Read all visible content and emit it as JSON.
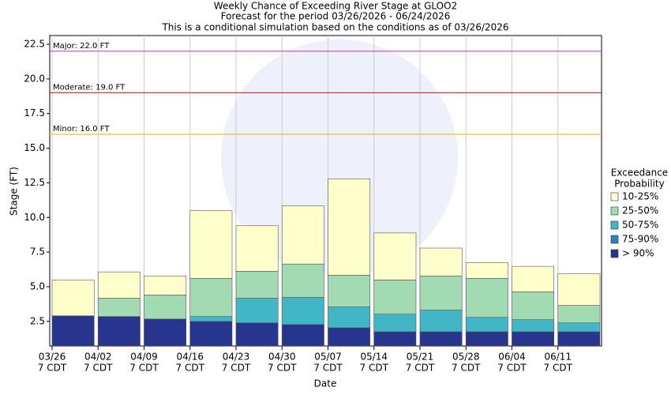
{
  "chart_data": {
    "type": "bar",
    "title": "Weekly Chance of Exceeding River Stage at GLOO2",
    "subtitle": [
      "Forecast for the period 03/26/2026 - 06/24/2026",
      "This is a conditional simulation based on the conditions as of 03/26/2026"
    ],
    "y_label": "Stage (FT)",
    "x_label": "Date",
    "categories": [
      [
        "03/26",
        "7 CDT"
      ],
      [
        "04/02",
        "7 CDT"
      ],
      [
        "04/09",
        "7 CDT"
      ],
      [
        "04/16",
        "7 CDT"
      ],
      [
        "04/23",
        "7 CDT"
      ],
      [
        "04/30",
        "7 CDT"
      ],
      [
        "05/07",
        "7 CDT"
      ],
      [
        "05/14",
        "7 CDT"
      ],
      [
        "05/21",
        "7 CDT"
      ],
      [
        "05/28",
        "7 CDT"
      ],
      [
        "06/04",
        "7 CDT"
      ],
      [
        "06/11",
        "7 CDT"
      ]
    ],
    "series": [
      {
        "name": "> 90%",
        "color": "#27358f",
        "values": [
          2.9,
          2.85,
          2.67,
          2.5,
          2.39,
          2.27,
          2.04,
          1.75,
          1.75,
          1.75,
          1.75,
          1.75
        ]
      },
      {
        "name": "75-90%",
        "color": "#2f7fbf",
        "values": [
          2.9,
          2.85,
          2.67,
          2.5,
          2.39,
          2.27,
          2.04,
          1.75,
          1.75,
          1.75,
          1.75,
          1.75
        ]
      },
      {
        "name": "50-75%",
        "color": "#41b6c6",
        "values": [
          2.9,
          2.85,
          2.67,
          2.85,
          4.17,
          4.23,
          3.54,
          3.02,
          3.31,
          2.79,
          2.62,
          2.39
        ]
      },
      {
        "name": "25-50%",
        "color": "#a2dab2",
        "values": [
          2.9,
          4.17,
          4.4,
          5.6,
          6.12,
          6.64,
          5.83,
          5.49,
          5.78,
          5.6,
          4.63,
          3.65
        ]
      },
      {
        "name": "10-25%",
        "color": "#ffffcc",
        "values": [
          5.49,
          6.07,
          5.78,
          10.49,
          9.4,
          10.83,
          12.79,
          8.88,
          7.79,
          6.75,
          6.47,
          5.95
        ]
      }
    ],
    "legend_title": [
      "Exceedance",
      "Probability"
    ],
    "flood_stages": [
      {
        "label": "Major: 22.0 FT",
        "value": 22,
        "color": "#cc44cc"
      },
      {
        "label": "Moderate: 19.0 FT",
        "value": 19,
        "color": "#dd2a2a"
      },
      {
        "label": "Minor: 16.0 FT",
        "value": 16,
        "color": "#f0c020"
      }
    ],
    "ylim": [
      0.72,
      23.13
    ],
    "yticks": [
      2.5,
      {
        "value": 5,
        "label": "5.0"
      },
      7.5,
      {
        "value": 10,
        "label": "10.0"
      },
      12.5,
      {
        "value": 15,
        "label": "15.0"
      },
      17.5,
      {
        "value": 20,
        "label": "20.0"
      },
      22.5
    ],
    "grid": "x"
  }
}
